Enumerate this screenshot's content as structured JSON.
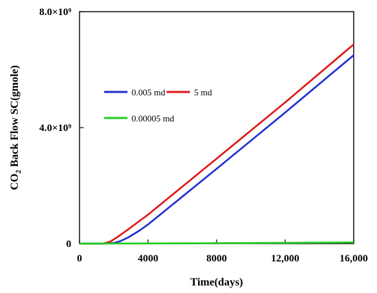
{
  "chart_data": {
    "type": "line",
    "xlabel": "Time(days)",
    "ylabel": "CO2 Back Flow SC(gmole)",
    "xlim": [
      0,
      16000
    ],
    "ylim": [
      0,
      8000000000
    ],
    "x_ticks": [
      {
        "value": 0,
        "label": "0"
      },
      {
        "value": 4000,
        "label": "4000"
      },
      {
        "value": 8000,
        "label": "8000"
      },
      {
        "value": 12000,
        "label": "12,000"
      },
      {
        "value": 16000,
        "label": "16,000"
      }
    ],
    "y_ticks": [
      {
        "value": 0,
        "label": "0"
      },
      {
        "value": 4000000000,
        "label": "4.0×10⁹"
      },
      {
        "value": 8000000000,
        "label": "8.0×10⁹"
      }
    ],
    "grid": false,
    "legend_placement": "upper-left",
    "series": [
      {
        "name": "0.005 md",
        "color": "#2030d0",
        "x": [
          0,
          1500,
          2000,
          2400,
          2800,
          3500,
          4000,
          8000,
          12000,
          16000
        ],
        "y": [
          0,
          0,
          20000000,
          90000000,
          200000000,
          450000000,
          660000000,
          2580000000,
          4520000000,
          6500000000
        ]
      },
      {
        "name": "5 md",
        "color": "#e01818",
        "x": [
          0,
          1400,
          1800,
          2200,
          2800,
          3500,
          4000,
          8000,
          12000,
          16000
        ],
        "y": [
          0,
          0,
          70000000,
          220000000,
          470000000,
          780000000,
          1000000000,
          2930000000,
          4870000000,
          6870000000
        ]
      },
      {
        "name": "0.00005 md",
        "color": "#22cc22",
        "x": [
          0,
          4000,
          8000,
          12000,
          16000
        ],
        "y": [
          0,
          5000000,
          15000000,
          25000000,
          40000000
        ]
      }
    ]
  }
}
